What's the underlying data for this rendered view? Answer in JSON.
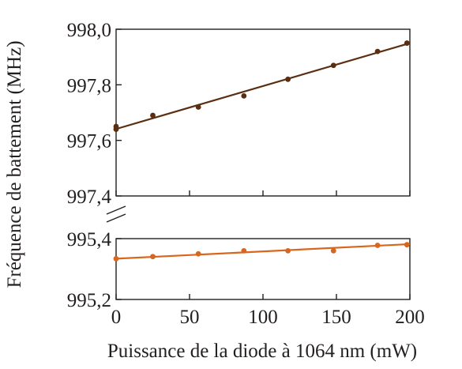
{
  "chart_data": {
    "type": "scatter",
    "xlabel": "Puissance de la diode à 1064 nm (mW)",
    "ylabel": "Fréquence de battement (MHz)",
    "x_ticks": [
      "0",
      "50",
      "100",
      "150",
      "200"
    ],
    "x_tick_values": [
      0,
      50,
      100,
      150,
      200
    ],
    "xlim": [
      0,
      200
    ],
    "broken_y_axis": true,
    "panels": [
      {
        "name": "upper",
        "ylim": [
          997.4,
          998.0
        ],
        "y_ticks": [
          "998,0",
          "997,8",
          "997,6",
          "997,4"
        ],
        "y_tick_values": [
          998.0,
          997.8,
          997.6,
          997.4
        ],
        "series": [
          {
            "color": "#5a2e10",
            "points": [
              {
                "x": 0,
                "y": 997.65
              },
              {
                "x": 0,
                "y": 997.64
              },
              {
                "x": 25,
                "y": 997.69
              },
              {
                "x": 56,
                "y": 997.72
              },
              {
                "x": 87,
                "y": 997.76
              },
              {
                "x": 117,
                "y": 997.82
              },
              {
                "x": 148,
                "y": 997.87
              },
              {
                "x": 178,
                "y": 997.92
              },
              {
                "x": 198,
                "y": 997.95
              }
            ],
            "fit": {
              "x": [
                0,
                200
              ],
              "y": [
                997.641,
                997.95
              ]
            }
          }
        ]
      },
      {
        "name": "lower",
        "ylim": [
          995.2,
          995.4
        ],
        "y_ticks": [
          "995,4",
          "995,2"
        ],
        "y_tick_values": [
          995.4,
          995.2
        ],
        "series": [
          {
            "color": "#d9661f",
            "points": [
              {
                "x": 0,
                "y": 995.334
              },
              {
                "x": 25,
                "y": 995.341
              },
              {
                "x": 56,
                "y": 995.35
              },
              {
                "x": 87,
                "y": 995.36
              },
              {
                "x": 117,
                "y": 995.36
              },
              {
                "x": 148,
                "y": 995.36
              },
              {
                "x": 178,
                "y": 995.378
              },
              {
                "x": 198,
                "y": 995.38
              }
            ],
            "fit": {
              "x": [
                0,
                200
              ],
              "y": [
                995.334,
                995.382
              ]
            }
          }
        ]
      }
    ]
  }
}
